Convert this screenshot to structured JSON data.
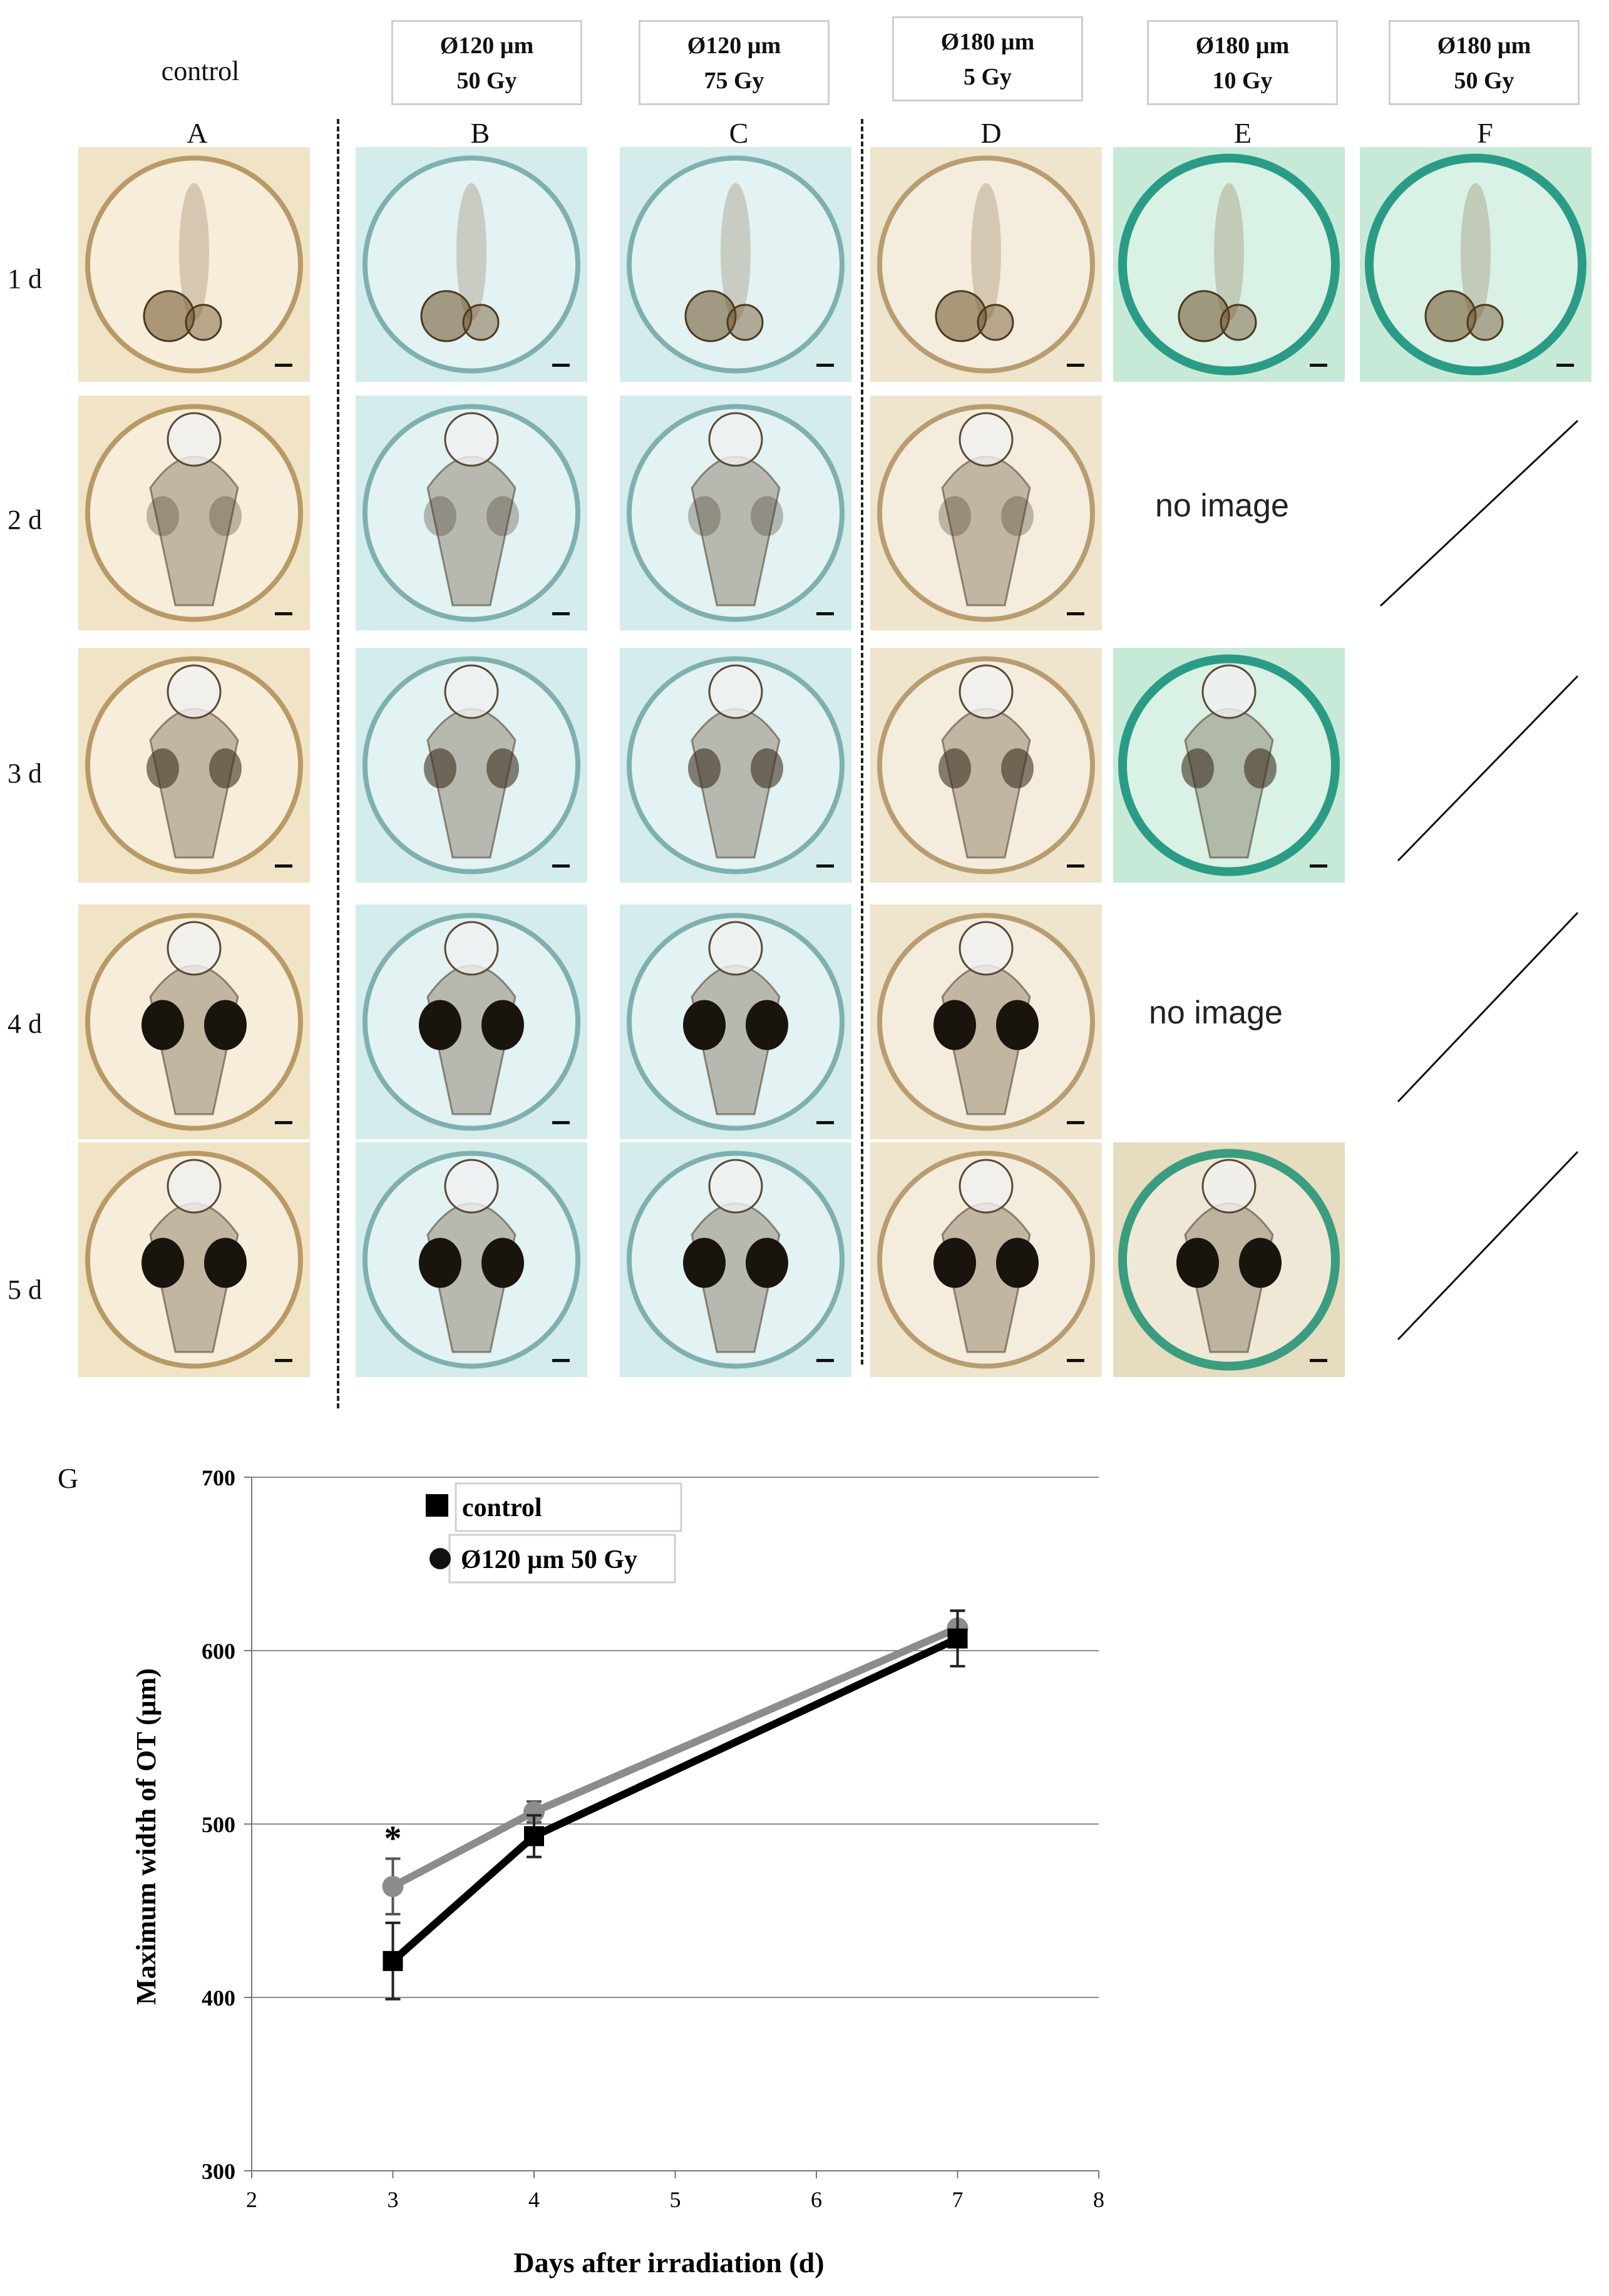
{
  "figure": {
    "control_label": "control",
    "headers": [
      {
        "diam": "Ø120 µm",
        "dose": "50 Gy"
      },
      {
        "diam": "Ø120 µm",
        "dose": "75 Gy"
      },
      {
        "diam": "Ø180 µm",
        "dose": "5 Gy"
      },
      {
        "diam": "Ø180 µm",
        "dose": "10 Gy"
      },
      {
        "diam": "Ø180 µm",
        "dose": "50 Gy"
      }
    ],
    "columns": [
      "A",
      "B",
      "C",
      "D",
      "E",
      "F"
    ],
    "rows": [
      "1 d",
      "2 d",
      "3 d",
      "4 d",
      "5 d"
    ],
    "no_image_label": "no image",
    "panel_g_label": "G"
  },
  "chart_data": {
    "type": "line",
    "title": "",
    "xlabel": "Days after irradiation (d)",
    "ylabel": "Maximum width of OT (µm)",
    "xlim": [
      2,
      8
    ],
    "ylim": [
      300,
      700
    ],
    "xticks": [
      2,
      3,
      4,
      5,
      6,
      7,
      8
    ],
    "yticks": [
      300,
      400,
      500,
      600,
      700
    ],
    "gridlines": [
      400,
      500,
      600,
      700
    ],
    "legend": [
      {
        "name": "control",
        "marker": "square"
      },
      {
        "name": "Ø120 µm 50 Gy",
        "marker": "circle"
      }
    ],
    "series": [
      {
        "name": "control",
        "color": "#000000",
        "x": [
          3,
          4,
          7
        ],
        "y": [
          421,
          493,
          607
        ],
        "err": [
          22,
          12,
          16
        ]
      },
      {
        "name": "Ø120 µm 50 Gy",
        "color": "#8c8c8c",
        "x": [
          3,
          4,
          7
        ],
        "y": [
          464,
          507,
          613
        ],
        "err": [
          16,
          6,
          10
        ]
      }
    ],
    "annotations": [
      {
        "text": "*",
        "x": 3
      }
    ]
  },
  "colors": {
    "control_bg": "#f1e3c6",
    "teal_bg": "#d4ecec",
    "green_bg": "#c7ead8",
    "tan_bg": "#efe4cc"
  }
}
